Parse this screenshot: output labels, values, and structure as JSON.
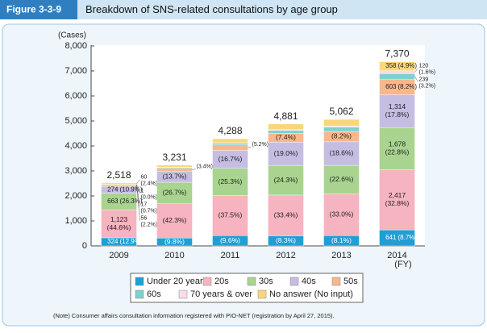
{
  "chart_data": {
    "type": "stacked_bar",
    "figure_label": "Figure 3-3-9",
    "title": "Breakdown of SNS-related consultations by age group",
    "y_unit": "(Cases)",
    "x_unit": "(FY)",
    "note": "(Note)   Consumer affairs consultation information registered with PIO-NET (registration by April 27, 2015).",
    "categories": [
      "2009",
      "2010",
      "2011",
      "2012",
      "2013",
      "2014"
    ],
    "totals": [
      2518,
      3231,
      4288,
      4881,
      5062,
      7370
    ],
    "total_labels": [
      "2,518",
      "3,231",
      "4,288",
      "4,881",
      "5,062",
      "7,370"
    ],
    "ylim": [
      0,
      8000
    ],
    "yticks": [
      0,
      {
        "value": 1000,
        "label": "1,000"
      },
      {
        "value": 2000,
        "label": "2,000"
      },
      {
        "value": 3000,
        "label": "3,000"
      },
      {
        "value": 4000,
        "label": "4,000"
      },
      {
        "value": 5000,
        "label": "5,000"
      },
      {
        "value": 6000,
        "label": "6,000"
      },
      {
        "value": 7000,
        "label": "7,000"
      },
      {
        "value": 8000,
        "label": "8,000"
      }
    ],
    "grid": false,
    "series": [
      {
        "name": "Under 20 years",
        "color": "#1f9fd6",
        "values": [
          324,
          317,
          412,
          405,
          410,
          641
        ],
        "value_labels": [
          "324",
          null,
          null,
          null,
          null,
          "641"
        ],
        "share_labels": [
          "(12.9%)",
          "(9.8%)",
          "(9.6%)",
          "(8.3%)",
          "(8.1%)",
          "(8.7%)"
        ]
      },
      {
        "name": "20s",
        "color": "#f6b3c0",
        "values": [
          1123,
          1367,
          1608,
          1630,
          1670,
          2417
        ],
        "value_labels": [
          "1,123",
          null,
          null,
          null,
          null,
          "2,417"
        ],
        "share_labels": [
          "(44.6%)",
          "(42.3%)",
          "(37.5%)",
          "(33.4%)",
          "(33.0%)",
          "(32.8%)"
        ]
      },
      {
        "name": "30s",
        "color": "#a9d48f",
        "values": [
          663,
          863,
          1085,
          1186,
          1144,
          1678
        ],
        "value_labels": [
          "663",
          null,
          null,
          null,
          null,
          "1,678"
        ],
        "share_labels": [
          "(26.3%)",
          "(26.7%)",
          "(25.3%)",
          "(24.3%)",
          "(22.6%)",
          "(22.8%)"
        ]
      },
      {
        "name": "40s",
        "color": "#c6bde3",
        "values": [
          274,
          443,
          716,
          927,
          942,
          1314
        ],
        "value_labels": [
          "274",
          null,
          null,
          null,
          null,
          "1,314"
        ],
        "share_labels": [
          "(10.9%)",
          "(13.7%)",
          "(16.7%)",
          "(19.0%)",
          "(18.6%)",
          "(17.8%)"
        ]
      },
      {
        "name": "50s",
        "color": "#f8b78c",
        "values": [
          56,
          110,
          223,
          361,
          415,
          603
        ],
        "value_labels": [
          "56",
          null,
          null,
          null,
          null,
          "603"
        ],
        "share_labels": [
          "(2.2%)",
          "(3.4%)",
          "(5.2%)",
          "(7.4%)",
          "(8.2%)",
          "(8.2%)"
        ]
      },
      {
        "name": "60s",
        "color": "#7fd1cf",
        "values": [
          17,
          40,
          70,
          110,
          170,
          239
        ],
        "value_labels": [
          "17",
          null,
          null,
          null,
          null,
          "239"
        ],
        "share_labels": [
          "(0.7%)",
          null,
          null,
          null,
          null,
          "(3.2%)"
        ]
      },
      {
        "name": "70 years & over",
        "color": "#f7dcea",
        "values": [
          1,
          11,
          14,
          32,
          41,
          120
        ],
        "value_labels": [
          "1",
          null,
          null,
          null,
          null,
          "120"
        ],
        "share_labels": [
          "(0.0%)",
          null,
          null,
          null,
          null,
          "(1.6%)"
        ]
      },
      {
        "name": "No answer (No input)",
        "color": "#f8d77b",
        "values": [
          60,
          80,
          160,
          230,
          270,
          358
        ],
        "value_labels": [
          "60",
          null,
          null,
          null,
          null,
          "358"
        ],
        "share_labels": [
          "(2.4%)",
          null,
          null,
          null,
          null,
          "(4.9%)"
        ]
      }
    ]
  }
}
